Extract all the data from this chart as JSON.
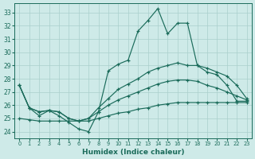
{
  "xlabel": "Humidex (Indice chaleur)",
  "x": [
    0,
    1,
    2,
    3,
    4,
    5,
    6,
    7,
    8,
    9,
    10,
    11,
    12,
    13,
    14,
    15,
    16,
    17,
    18,
    19,
    20,
    21,
    22,
    23
  ],
  "line_main": [
    27.5,
    25.8,
    25.2,
    25.6,
    25.2,
    24.7,
    24.2,
    24.0,
    25.5,
    28.6,
    29.1,
    29.4,
    31.6,
    32.4,
    33.3,
    31.4,
    32.2,
    32.2,
    29.0,
    28.5,
    28.3,
    27.5,
    26.3,
    26.3
  ],
  "line_upper": [
    27.5,
    25.8,
    25.5,
    25.6,
    25.5,
    25.0,
    24.8,
    25.0,
    25.8,
    26.5,
    27.2,
    27.6,
    28.0,
    28.5,
    28.8,
    29.0,
    29.2,
    29.0,
    29.0,
    28.8,
    28.5,
    28.2,
    27.5,
    26.5
  ],
  "line_mid": [
    27.5,
    25.8,
    25.5,
    25.6,
    25.5,
    25.0,
    24.8,
    25.0,
    25.5,
    26.0,
    26.4,
    26.7,
    27.0,
    27.3,
    27.6,
    27.8,
    27.9,
    27.9,
    27.8,
    27.5,
    27.3,
    27.0,
    26.7,
    26.4
  ],
  "line_lower": [
    25.0,
    24.9,
    24.8,
    24.8,
    24.8,
    24.8,
    24.8,
    24.8,
    25.0,
    25.2,
    25.4,
    25.5,
    25.7,
    25.8,
    26.0,
    26.1,
    26.2,
    26.2,
    26.2,
    26.2,
    26.2,
    26.2,
    26.2,
    26.2
  ],
  "ylim": [
    23.5,
    33.7
  ],
  "xlim": [
    -0.5,
    23.5
  ],
  "yticks": [
    24,
    25,
    26,
    27,
    28,
    29,
    30,
    31,
    32,
    33
  ],
  "xtick_labels": [
    "0",
    "1",
    "2",
    "3",
    "4",
    "5",
    "6",
    "7",
    "8",
    "9",
    "10",
    "11",
    "12",
    "13",
    "14",
    "15",
    "16",
    "17",
    "18",
    "19",
    "20",
    "21",
    "22",
    "23"
  ],
  "line_color": "#1a6b5a",
  "bg_color": "#ceeae8",
  "grid_color": "#aacfcc"
}
